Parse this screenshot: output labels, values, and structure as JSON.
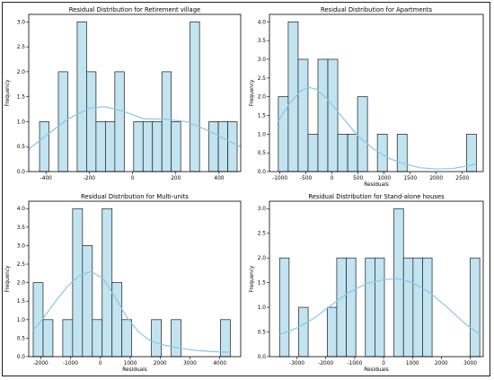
{
  "chart_data": [
    {
      "type": "bar",
      "title": "Residual Distribution for Retirement village",
      "xlabel": "",
      "ylabel": "Frequency",
      "xlim": [
        -480,
        500
      ],
      "ylim": [
        0,
        3.15
      ],
      "xticks": [
        -400,
        -200,
        0,
        200,
        400
      ],
      "yticks": [
        0.0,
        0.5,
        1.0,
        1.5,
        2.0,
        2.5,
        3.0
      ],
      "bin_edges": [
        -430,
        -386.5,
        -343,
        -299.5,
        -256,
        -212.5,
        -169,
        -125.5,
        -82,
        -38.5,
        5,
        48.5,
        92,
        135.5,
        179,
        222.5,
        266,
        309.5,
        353,
        396.5,
        440,
        483.5
      ],
      "values": [
        1,
        0,
        2,
        0,
        3,
        2,
        1,
        1,
        2,
        0,
        1,
        1,
        1,
        2,
        1,
        0,
        3,
        0,
        1,
        1,
        1
      ],
      "kde": [
        [
          -480,
          0.45
        ],
        [
          -400,
          0.72
        ],
        [
          -300,
          1.05
        ],
        [
          -200,
          1.27
        ],
        [
          -130,
          1.3
        ],
        [
          -50,
          1.22
        ],
        [
          50,
          1.06
        ],
        [
          150,
          1.05
        ],
        [
          250,
          1.0
        ],
        [
          350,
          0.82
        ],
        [
          450,
          0.6
        ],
        [
          500,
          0.5
        ]
      ]
    },
    {
      "type": "bar",
      "title": "Residual Distribution for Apartments",
      "xlabel": "Residuals",
      "ylabel": "Frequency",
      "xlim": [
        -1200,
        2900
      ],
      "ylim": [
        0,
        4.2
      ],
      "xticks": [
        -1000,
        -500,
        0,
        500,
        1000,
        1500,
        2000,
        2500
      ],
      "yticks": [
        0.0,
        0.5,
        1.0,
        1.5,
        2.0,
        2.5,
        3.0,
        3.5,
        4.0
      ],
      "bin_edges": [
        -1030,
        -840,
        -650,
        -460,
        -270,
        -80,
        110,
        300,
        490,
        680,
        870,
        1060,
        1250,
        1440,
        1630,
        1820,
        2010,
        2200,
        2390,
        2580,
        2770
      ],
      "values": [
        2,
        4,
        3,
        1,
        3,
        3,
        1,
        1,
        2,
        0,
        1,
        0,
        1,
        0,
        0,
        0,
        0,
        0,
        0,
        1
      ],
      "kde": [
        [
          -1030,
          1.35
        ],
        [
          -800,
          1.85
        ],
        [
          -600,
          2.15
        ],
        [
          -450,
          2.25
        ],
        [
          -300,
          2.2
        ],
        [
          -100,
          1.95
        ],
        [
          200,
          1.45
        ],
        [
          500,
          0.95
        ],
        [
          800,
          0.6
        ],
        [
          1100,
          0.35
        ],
        [
          1400,
          0.2
        ],
        [
          1700,
          0.1
        ],
        [
          2000,
          0.07
        ],
        [
          2300,
          0.08
        ],
        [
          2600,
          0.15
        ],
        [
          2770,
          0.2
        ]
      ]
    },
    {
      "type": "bar",
      "title": "Residual Distribution for Multi-units",
      "xlabel": "Residuals",
      "ylabel": "Frequency",
      "xlim": [
        -2400,
        4700
      ],
      "ylim": [
        0,
        4.2
      ],
      "xticks": [
        -2000,
        -1000,
        0,
        1000,
        2000,
        3000,
        4000
      ],
      "yticks": [
        0.0,
        0.5,
        1.0,
        1.5,
        2.0,
        2.5,
        3.0,
        3.5,
        4.0
      ],
      "bin_edges": [
        -2250,
        -1920,
        -1590,
        -1260,
        -930,
        -600,
        -270,
        60,
        390,
        720,
        1050,
        1380,
        1710,
        2040,
        2370,
        2700,
        3030,
        3360,
        3690,
        4020,
        4350
      ],
      "values": [
        2,
        1,
        0,
        1,
        4,
        3,
        1,
        4,
        2,
        1,
        0,
        0,
        1,
        0,
        1,
        0,
        0,
        0,
        0,
        1
      ],
      "kde": [
        [
          -2250,
          0.72
        ],
        [
          -1900,
          1.05
        ],
        [
          -1500,
          1.5
        ],
        [
          -1100,
          1.9
        ],
        [
          -700,
          2.2
        ],
        [
          -300,
          2.3
        ],
        [
          100,
          2.1
        ],
        [
          500,
          1.6
        ],
        [
          900,
          1.05
        ],
        [
          1300,
          0.65
        ],
        [
          1700,
          0.42
        ],
        [
          2200,
          0.3
        ],
        [
          2700,
          0.22
        ],
        [
          3300,
          0.16
        ],
        [
          3900,
          0.13
        ],
        [
          4350,
          0.12
        ]
      ]
    },
    {
      "type": "bar",
      "title": "Residual Distribution for Stand-alone houses",
      "xlabel": "Residuals",
      "ylabel": "Frequency",
      "xlim": [
        -3950,
        3450
      ],
      "ylim": [
        0,
        3.15
      ],
      "xticks": [
        -3000,
        -2000,
        -1000,
        0,
        1000,
        2000,
        3000
      ],
      "yticks": [
        0.0,
        0.5,
        1.0,
        1.5,
        2.0,
        2.5,
        3.0
      ],
      "bin_edges": [
        -3600,
        -3270,
        -2940,
        -2610,
        -2280,
        -1950,
        -1620,
        -1290,
        -960,
        -630,
        -300,
        30,
        360,
        690,
        1020,
        1350,
        1680,
        2010,
        2340,
        2670,
        3000,
        3330
      ],
      "values": [
        2,
        0,
        1,
        0,
        0,
        1,
        2,
        2,
        0,
        2,
        2,
        0,
        3,
        2,
        2,
        2,
        0,
        0,
        0,
        0,
        2
      ],
      "kde": [
        [
          -3600,
          0.45
        ],
        [
          -3000,
          0.58
        ],
        [
          -2400,
          0.78
        ],
        [
          -1800,
          1.05
        ],
        [
          -1200,
          1.3
        ],
        [
          -600,
          1.48
        ],
        [
          0,
          1.56
        ],
        [
          500,
          1.58
        ],
        [
          1000,
          1.5
        ],
        [
          1600,
          1.3
        ],
        [
          2200,
          1.0
        ],
        [
          2800,
          0.68
        ],
        [
          3330,
          0.45
        ]
      ]
    }
  ]
}
